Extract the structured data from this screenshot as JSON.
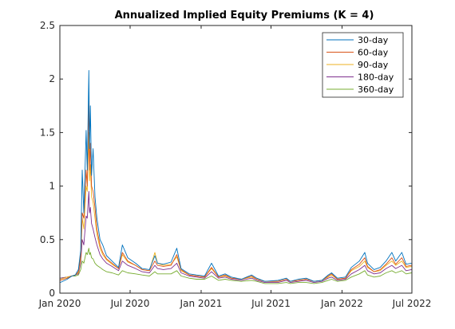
{
  "chart_data": {
    "type": "line",
    "title": "Annualized Implied Equity Premiums (K = 4)",
    "xlabel": "",
    "ylabel": "",
    "xlim": [
      "2020-01-01",
      "2022-07-01"
    ],
    "ylim": [
      0,
      2.5
    ],
    "x_ticks": [
      {
        "date": "2020-01-01",
        "label": "Jan 2020"
      },
      {
        "date": "2020-07-01",
        "label": "Jul 2020"
      },
      {
        "date": "2021-01-01",
        "label": "Jan 2021"
      },
      {
        "date": "2021-07-01",
        "label": "Jul 2021"
      },
      {
        "date": "2022-01-01",
        "label": "Jan 2022"
      },
      {
        "date": "2022-07-01",
        "label": "Jul 2022"
      }
    ],
    "y_ticks": [
      {
        "value": 0,
        "label": "0"
      },
      {
        "value": 0.5,
        "label": "0.5"
      },
      {
        "value": 1,
        "label": "1"
      },
      {
        "value": 1.5,
        "label": "1.5"
      },
      {
        "value": 2,
        "label": "2"
      },
      {
        "value": 2.5,
        "label": "2.5"
      }
    ],
    "grid": false,
    "legend_position": "top-right",
    "x": [
      "2020-01-02",
      "2020-01-20",
      "2020-02-01",
      "2020-02-10",
      "2020-02-18",
      "2020-02-24",
      "2020-02-28",
      "2020-03-03",
      "2020-03-09",
      "2020-03-12",
      "2020-03-16",
      "2020-03-18",
      "2020-03-20",
      "2020-03-23",
      "2020-03-27",
      "2020-04-01",
      "2020-04-06",
      "2020-04-14",
      "2020-04-21",
      "2020-05-01",
      "2020-05-15",
      "2020-06-01",
      "2020-06-11",
      "2020-06-25",
      "2020-07-15",
      "2020-08-01",
      "2020-08-20",
      "2020-09-03",
      "2020-09-10",
      "2020-09-25",
      "2020-10-15",
      "2020-10-30",
      "2020-11-10",
      "2020-12-01",
      "2020-12-20",
      "2021-01-10",
      "2021-01-28",
      "2021-02-15",
      "2021-03-04",
      "2021-03-20",
      "2021-04-15",
      "2021-05-12",
      "2021-05-25",
      "2021-06-15",
      "2021-07-19",
      "2021-08-10",
      "2021-08-20",
      "2021-09-10",
      "2021-09-30",
      "2021-10-20",
      "2021-11-10",
      "2021-11-26",
      "2021-12-05",
      "2021-12-20",
      "2022-01-10",
      "2022-01-25",
      "2022-02-15",
      "2022-03-01",
      "2022-03-08",
      "2022-03-25",
      "2022-04-10",
      "2022-04-25",
      "2022-05-10",
      "2022-05-20",
      "2022-06-05",
      "2022-06-16",
      "2022-06-30"
    ],
    "series": [
      {
        "name": "30-day",
        "color": "#0072BD",
        "values": [
          0.1,
          0.13,
          0.16,
          0.17,
          0.22,
          0.4,
          1.15,
          0.75,
          1.52,
          1.15,
          2.08,
          1.35,
          1.75,
          1.1,
          1.35,
          0.9,
          0.7,
          0.5,
          0.45,
          0.35,
          0.3,
          0.24,
          0.45,
          0.33,
          0.28,
          0.23,
          0.22,
          0.35,
          0.28,
          0.27,
          0.29,
          0.42,
          0.23,
          0.18,
          0.17,
          0.16,
          0.28,
          0.16,
          0.18,
          0.15,
          0.13,
          0.17,
          0.14,
          0.11,
          0.12,
          0.14,
          0.11,
          0.13,
          0.14,
          0.11,
          0.12,
          0.17,
          0.19,
          0.14,
          0.15,
          0.24,
          0.3,
          0.38,
          0.28,
          0.22,
          0.24,
          0.3,
          0.38,
          0.3,
          0.38,
          0.27,
          0.28
        ]
      },
      {
        "name": "60-day",
        "color": "#D95319",
        "values": [
          0.12,
          0.14,
          0.16,
          0.17,
          0.2,
          0.35,
          0.75,
          0.7,
          1.15,
          1.0,
          1.8,
          1.15,
          1.4,
          1.0,
          0.95,
          0.8,
          0.6,
          0.45,
          0.38,
          0.32,
          0.28,
          0.23,
          0.38,
          0.3,
          0.26,
          0.22,
          0.21,
          0.3,
          0.26,
          0.25,
          0.26,
          0.36,
          0.22,
          0.17,
          0.16,
          0.15,
          0.24,
          0.15,
          0.17,
          0.14,
          0.13,
          0.16,
          0.13,
          0.11,
          0.11,
          0.13,
          0.11,
          0.12,
          0.13,
          0.11,
          0.12,
          0.16,
          0.18,
          0.13,
          0.14,
          0.22,
          0.27,
          0.33,
          0.25,
          0.2,
          0.22,
          0.27,
          0.33,
          0.27,
          0.33,
          0.25,
          0.26
        ]
      },
      {
        "name": "90-day",
        "color": "#EDB120",
        "values": [
          0.13,
          0.15,
          0.16,
          0.17,
          0.19,
          0.32,
          0.7,
          0.6,
          1.0,
          0.95,
          1.5,
          1.05,
          1.2,
          0.9,
          0.85,
          0.7,
          0.55,
          0.42,
          0.36,
          0.31,
          0.27,
          0.23,
          0.36,
          0.29,
          0.26,
          0.22,
          0.21,
          0.38,
          0.28,
          0.26,
          0.27,
          0.34,
          0.21,
          0.17,
          0.16,
          0.15,
          0.23,
          0.15,
          0.16,
          0.14,
          0.13,
          0.15,
          0.13,
          0.11,
          0.11,
          0.13,
          0.11,
          0.12,
          0.13,
          0.11,
          0.12,
          0.15,
          0.17,
          0.13,
          0.14,
          0.21,
          0.25,
          0.3,
          0.24,
          0.2,
          0.21,
          0.26,
          0.3,
          0.26,
          0.3,
          0.24,
          0.25
        ]
      },
      {
        "name": "180-day",
        "color": "#7E2F8E",
        "values": [
          0.14,
          0.15,
          0.16,
          0.17,
          0.18,
          0.28,
          0.5,
          0.45,
          0.72,
          0.7,
          0.95,
          0.75,
          0.8,
          0.65,
          0.6,
          0.52,
          0.45,
          0.36,
          0.32,
          0.28,
          0.25,
          0.21,
          0.3,
          0.26,
          0.23,
          0.2,
          0.19,
          0.26,
          0.23,
          0.22,
          0.23,
          0.28,
          0.19,
          0.16,
          0.15,
          0.14,
          0.2,
          0.14,
          0.15,
          0.13,
          0.12,
          0.14,
          0.12,
          0.1,
          0.1,
          0.12,
          0.1,
          0.11,
          0.12,
          0.1,
          0.11,
          0.14,
          0.15,
          0.12,
          0.13,
          0.18,
          0.22,
          0.26,
          0.21,
          0.18,
          0.19,
          0.23,
          0.26,
          0.23,
          0.26,
          0.21,
          0.22
        ]
      },
      {
        "name": "360-day",
        "color": "#77AC30",
        "values": [
          0.14,
          0.15,
          0.16,
          0.16,
          0.17,
          0.22,
          0.3,
          0.28,
          0.38,
          0.36,
          0.42,
          0.36,
          0.38,
          0.33,
          0.32,
          0.28,
          0.26,
          0.24,
          0.22,
          0.2,
          0.19,
          0.17,
          0.21,
          0.19,
          0.18,
          0.17,
          0.16,
          0.2,
          0.18,
          0.18,
          0.18,
          0.21,
          0.16,
          0.14,
          0.13,
          0.13,
          0.16,
          0.12,
          0.13,
          0.12,
          0.11,
          0.12,
          0.11,
          0.09,
          0.09,
          0.1,
          0.09,
          0.1,
          0.1,
          0.09,
          0.1,
          0.12,
          0.13,
          0.11,
          0.12,
          0.15,
          0.18,
          0.21,
          0.17,
          0.15,
          0.16,
          0.19,
          0.21,
          0.19,
          0.21,
          0.18,
          0.19
        ]
      }
    ]
  }
}
